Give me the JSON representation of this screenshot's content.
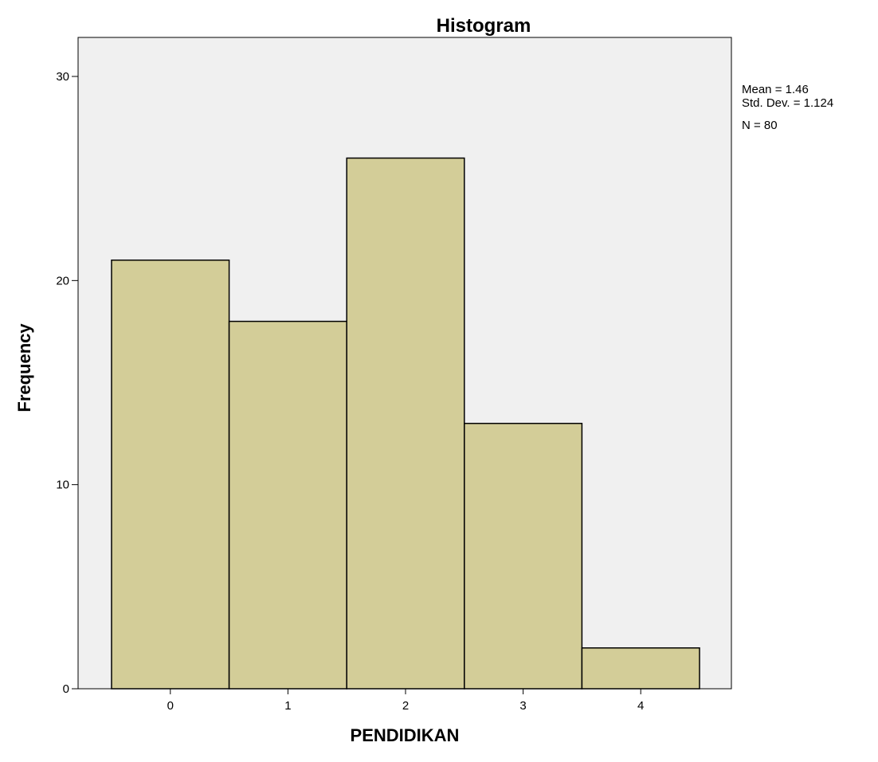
{
  "chart_data": {
    "type": "bar",
    "title": "Histogram",
    "xlabel": "PENDIDIKAN",
    "ylabel": "Frequency",
    "categories": [
      "0",
      "1",
      "2",
      "3",
      "4"
    ],
    "values": [
      21,
      18,
      26,
      13,
      2
    ],
    "ylim": [
      0,
      30
    ],
    "yticks": [
      "0",
      "10",
      "20",
      "30"
    ],
    "grid": false,
    "colors": {
      "bar_fill": "#d3cd98",
      "bar_stroke": "#000000",
      "plot_background": "#f0f0f0"
    },
    "stats": {
      "mean": "Mean = 1.46",
      "std_dev": "Std. Dev. = 1.124",
      "n": "N = 80"
    }
  }
}
